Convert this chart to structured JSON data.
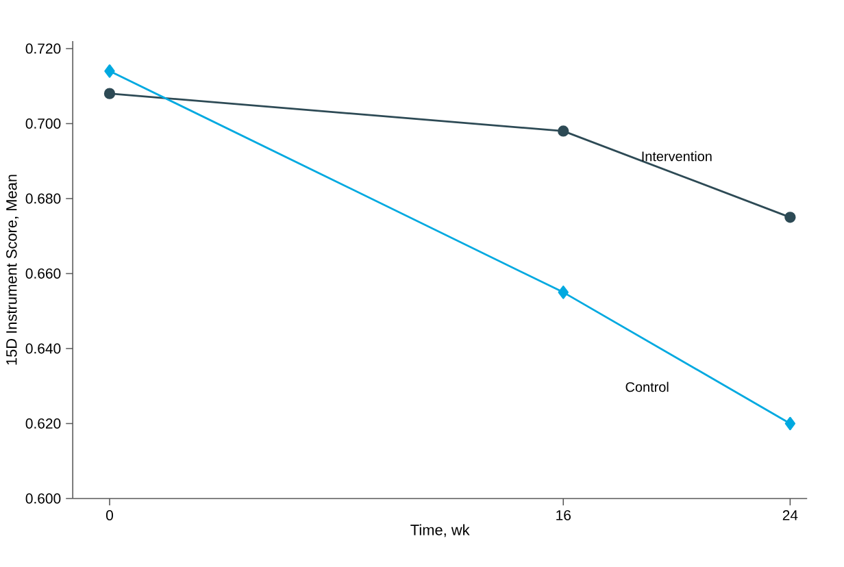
{
  "chart_data": {
    "type": "line",
    "xlabel": "Time, wk",
    "ylabel": "15D Instrument Score, Mean",
    "x": [
      0,
      16,
      24
    ],
    "series": [
      {
        "name": "Intervention",
        "color": "#2d4a55",
        "marker": "circle",
        "values": [
          0.708,
          0.698,
          0.675
        ]
      },
      {
        "name": "Control",
        "color": "#00a9e0",
        "marker": "diamond",
        "values": [
          0.714,
          0.655,
          0.62
        ]
      }
    ],
    "xlim": [
      -1.3,
      24.6
    ],
    "xticks": [
      0,
      16,
      24
    ],
    "ylim": [
      0.6,
      0.722
    ],
    "yticks": [
      {
        "value": 0.6,
        "label": "0.600"
      },
      {
        "value": 0.62,
        "label": "0.620"
      },
      {
        "value": 0.64,
        "label": "0.640"
      },
      {
        "value": 0.66,
        "label": "0.660"
      },
      {
        "value": 0.68,
        "label": "0.680"
      },
      {
        "value": 0.7,
        "label": "0.700"
      },
      {
        "value": 0.72,
        "label": "0.720"
      }
    ],
    "grid": false,
    "legend": false,
    "line_style": "solid"
  }
}
